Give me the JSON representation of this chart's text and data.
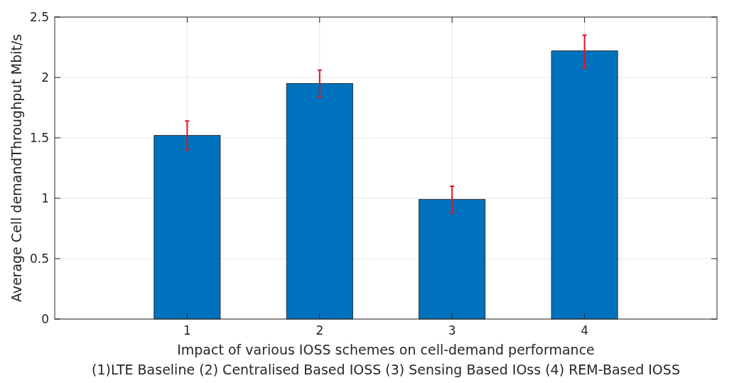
{
  "chart_data": {
    "type": "bar",
    "xlabel": "Impact of various IOSS schemes on cell-demand performance",
    "ylabel": "Average Cell demandThroughput Mbit/s",
    "annotations": [
      "(1)LTE Baseline (2) Centralised Based IOSS (3) Sensing Based IOss (4) REM-Based IOSS"
    ],
    "x": [
      1,
      2,
      3,
      4
    ],
    "values": [
      1.52,
      1.95,
      0.99,
      2.22
    ],
    "color": "#0072bd",
    "errors": [
      [
        1.4,
        1.64
      ],
      [
        1.84,
        2.06
      ],
      [
        0.88,
        1.1
      ],
      [
        2.08,
        2.35
      ]
    ],
    "xlim": [
      0,
      5
    ],
    "xticks": [
      1,
      2,
      3,
      4
    ],
    "ylim": [
      0,
      2.5
    ],
    "yticks": [
      0,
      0.5,
      1,
      1.5,
      2,
      2.5
    ],
    "grid": true
  }
}
